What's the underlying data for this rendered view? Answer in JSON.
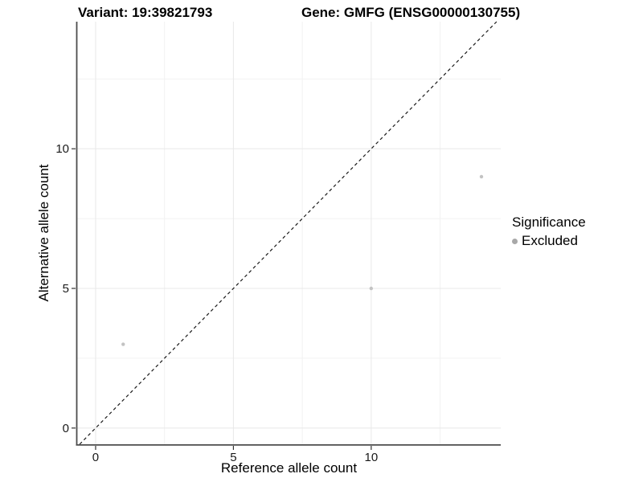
{
  "header": {
    "variant_title": "Variant: 19:39821793",
    "gene_title": "Gene: GMFG (ENSG00000130755)"
  },
  "chart_data": {
    "type": "scatter",
    "xlabel": "Reference allele count",
    "ylabel": "Alternative allele count",
    "xlim": [
      -0.67,
      14.7
    ],
    "ylim": [
      -0.58,
      14.55
    ],
    "x_ticks": [
      0,
      5,
      10
    ],
    "y_ticks": [
      0,
      5,
      10
    ],
    "x_minor_gridlines": [
      2.5,
      7.5,
      12.5
    ],
    "y_minor_gridlines": [
      2.5,
      7.5,
      12.5
    ],
    "grid": "major and minor, very light, white panel background",
    "series": [
      {
        "name": "Excluded",
        "color": "#c3c3c3",
        "points": [
          {
            "x": 1,
            "y": 3
          },
          {
            "x": 10,
            "y": 5
          },
          {
            "x": 14,
            "y": 9
          }
        ]
      }
    ],
    "reference_line": {
      "type": "identity",
      "slope": 1,
      "intercept": 0,
      "style": "dashed",
      "color": "#1a1a1a"
    },
    "legend": {
      "position": "right",
      "title": "Significance",
      "entries": [
        {
          "label": "Excluded",
          "color": "#a8a8a8"
        }
      ]
    },
    "colors": {
      "major_grid": "#e8e8e8",
      "minor_grid": "#f2f2f2",
      "axis_line": "#4d4d4d",
      "tick_mark": "#333333",
      "tick_text": "#1a1a1a"
    }
  }
}
